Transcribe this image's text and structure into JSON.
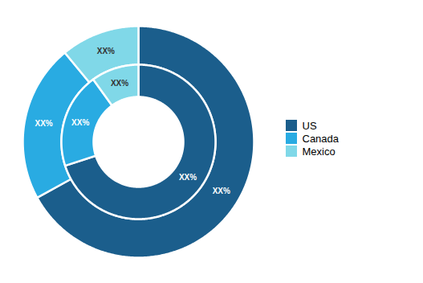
{
  "chart_data": {
    "type": "pie",
    "categories": [
      "US",
      "Canada",
      "Mexico"
    ],
    "colors": [
      "#1b5e8c",
      "#29abe2",
      "#80d8e8"
    ],
    "series": [
      {
        "values": [
          67,
          22,
          11
        ],
        "value_labels": [
          "XX%",
          "XX%",
          "XX%"
        ]
      },
      {
        "values": [
          70,
          20,
          10
        ],
        "value_labels": [
          "XX%",
          "XX%",
          "XX%"
        ]
      }
    ],
    "data_labels": true,
    "legend": "right"
  }
}
